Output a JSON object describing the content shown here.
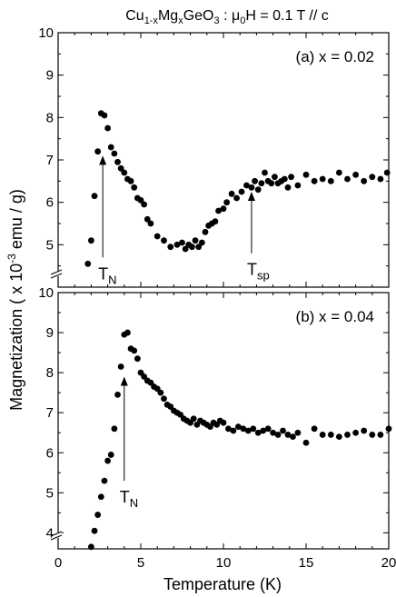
{
  "title": {
    "base": "Cu",
    "s1": "1-x",
    "m1": "Mg",
    "s2": "x",
    "m2": "GeO",
    "s3": "3",
    "tail": " : μ",
    "s4": "0",
    "end": "H = 0.1 T // c"
  },
  "chart_data": [
    {
      "type": "scatter",
      "panel_label": "(a) x = 0.02",
      "xlim": [
        0,
        20
      ],
      "ylim": [
        4,
        10
      ],
      "y_axis_break": true,
      "yticks": [
        5,
        6,
        7,
        8,
        9,
        10
      ],
      "annotations": [
        {
          "base": "T",
          "sub": "N",
          "x": 2.7,
          "y_from": 4.7,
          "y_to": 7.1
        },
        {
          "base": "T",
          "sub": "sp",
          "x": 11.7,
          "y_from": 4.8,
          "y_to": 6.25
        }
      ],
      "x": [
        1.8,
        2.0,
        2.2,
        2.4,
        2.6,
        2.8,
        3.0,
        3.2,
        3.4,
        3.6,
        3.8,
        4.0,
        4.2,
        4.4,
        4.6,
        4.8,
        5.0,
        5.2,
        5.4,
        5.6,
        6.0,
        6.4,
        6.8,
        7.2,
        7.5,
        7.7,
        7.9,
        8.1,
        8.3,
        8.5,
        8.7,
        8.9,
        9.1,
        9.3,
        9.5,
        9.7,
        10.0,
        10.2,
        10.5,
        10.8,
        11.1,
        11.4,
        11.7,
        11.9,
        12.1,
        12.3,
        12.5,
        12.7,
        12.9,
        13.1,
        13.3,
        13.5,
        13.7,
        13.9,
        14.1,
        14.5,
        15.0,
        15.5,
        16.0,
        16.5,
        17.0,
        17.5,
        18.0,
        18.5,
        19.0,
        19.5,
        19.9
      ],
      "y": [
        4.55,
        5.1,
        6.15,
        7.2,
        8.1,
        8.05,
        7.75,
        7.3,
        7.15,
        6.95,
        6.8,
        6.7,
        6.55,
        6.5,
        6.35,
        6.1,
        6.05,
        5.95,
        5.6,
        5.5,
        5.2,
        5.1,
        4.95,
        5.0,
        5.05,
        4.9,
        5.0,
        4.95,
        5.1,
        4.95,
        5.05,
        5.3,
        5.45,
        5.5,
        5.55,
        5.8,
        5.85,
        6.0,
        6.2,
        6.1,
        6.25,
        6.4,
        6.35,
        6.5,
        6.3,
        6.45,
        6.7,
        6.5,
        6.45,
        6.6,
        6.45,
        6.5,
        6.55,
        6.35,
        6.6,
        6.4,
        6.65,
        6.5,
        6.55,
        6.5,
        6.7,
        6.55,
        6.65,
        6.5,
        6.6,
        6.55,
        6.7
      ]
    },
    {
      "type": "scatter",
      "panel_label": "(b) x = 0.04",
      "xlim": [
        0,
        20
      ],
      "ylim": [
        3.6,
        10
      ],
      "y_axis_break": true,
      "yticks": [
        4,
        5,
        6,
        7,
        8,
        9,
        10
      ],
      "annotations": [
        {
          "base": "T",
          "sub": "N",
          "x": 4.0,
          "y_from": 5.3,
          "y_to": 7.9
        }
      ],
      "x": [
        2.0,
        2.2,
        2.4,
        2.6,
        2.8,
        3.0,
        3.2,
        3.4,
        3.6,
        3.8,
        4.0,
        4.2,
        4.4,
        4.6,
        4.8,
        5.0,
        5.2,
        5.4,
        5.6,
        5.8,
        6.0,
        6.2,
        6.4,
        6.6,
        6.8,
        7.0,
        7.2,
        7.4,
        7.6,
        7.8,
        8.0,
        8.2,
        8.4,
        8.6,
        8.8,
        9.0,
        9.2,
        9.4,
        9.6,
        9.8,
        10.0,
        10.3,
        10.6,
        10.9,
        11.2,
        11.5,
        11.8,
        12.1,
        12.4,
        12.7,
        13.0,
        13.3,
        13.6,
        13.9,
        14.2,
        14.5,
        15.0,
        15.5,
        16.0,
        16.5,
        17.0,
        17.5,
        18.0,
        18.5,
        19.0,
        19.5,
        20.0
      ],
      "y": [
        3.65,
        4.05,
        4.45,
        4.9,
        5.3,
        5.8,
        5.95,
        6.6,
        7.45,
        8.15,
        8.95,
        9.0,
        8.6,
        8.55,
        8.35,
        8.0,
        7.9,
        7.8,
        7.75,
        7.65,
        7.6,
        7.5,
        7.35,
        7.2,
        7.15,
        7.05,
        7.0,
        6.95,
        6.85,
        6.8,
        6.75,
        6.85,
        6.7,
        6.8,
        6.75,
        6.7,
        6.65,
        6.75,
        6.7,
        6.8,
        6.75,
        6.6,
        6.55,
        6.65,
        6.6,
        6.55,
        6.6,
        6.5,
        6.55,
        6.6,
        6.5,
        6.45,
        6.55,
        6.45,
        6.4,
        6.5,
        6.25,
        6.6,
        6.45,
        6.45,
        6.4,
        6.45,
        6.5,
        6.55,
        6.45,
        6.45,
        6.6
      ]
    }
  ],
  "x_axis": {
    "label": "Temperature (K)",
    "ticks": [
      0,
      5,
      10,
      15,
      20
    ]
  },
  "y_axis": {
    "label": "Magnetization ( x 10-3 emu / g)",
    "label_pre": "Magnetization ( x 10",
    "label_sup": "-3",
    "label_post": " emu / g)"
  }
}
